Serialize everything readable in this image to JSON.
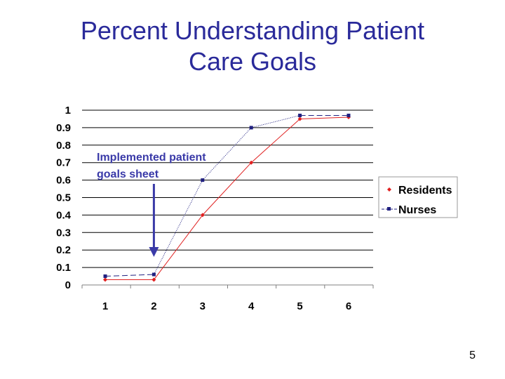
{
  "slide": {
    "title_line1": "Percent Understanding Patient",
    "title_line2": "Care Goals",
    "page_number": "5"
  },
  "colors": {
    "title": "#2a2a9a",
    "residents": "#e02020",
    "nurses": "#202080",
    "annotation": "#3a3aa8"
  },
  "chart_data": {
    "type": "line",
    "title": "Percent Understanding Patient Care Goals",
    "x": [
      1,
      2,
      3,
      4,
      5,
      6
    ],
    "x_tick_labels": [
      "1",
      "2",
      "3",
      "4",
      "5",
      "6"
    ],
    "y_tick_labels": [
      "0",
      "0.1",
      "0.2",
      "0.3",
      "0.4",
      "0.5",
      "0.6",
      "0.7",
      "0.8",
      "0.9",
      "1"
    ],
    "ylim": [
      0,
      1
    ],
    "grid": "horizontal",
    "legend_position": "right",
    "series": [
      {
        "name": "Residents",
        "marker": "diamond",
        "values": [
          0.03,
          0.03,
          0.4,
          0.7,
          0.95,
          0.96
        ]
      },
      {
        "name": "Nurses",
        "marker": "square",
        "values": [
          0.05,
          0.06,
          0.6,
          0.9,
          0.97,
          0.97
        ]
      }
    ],
    "annotation": {
      "line1": "Implemented patient",
      "line2": "goals sheet",
      "x": 2
    }
  }
}
